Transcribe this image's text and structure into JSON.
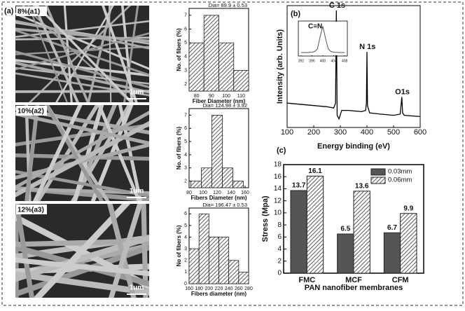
{
  "figure": {
    "panel_label": "(a)",
    "images": [
      {
        "label": "8%(a1)",
        "scale": "1um"
      },
      {
        "label": "10%(a2)",
        "scale": "1um"
      },
      {
        "label": "12%(a3)",
        "scale": "1um"
      }
    ]
  },
  "chart_data": [
    {
      "type": "histogram",
      "annotation": "Dia= 89.9 ± 0.53",
      "xlabel": "Fiber Diameter (nm)",
      "ylabel": "No. of fibers (%)",
      "bins": [
        75,
        85,
        95,
        105,
        115
      ],
      "values": [
        5,
        7,
        5,
        3
      ],
      "color": "#555555",
      "pattern": "hatch",
      "xlim": [
        75,
        115
      ],
      "xticks": [
        80,
        90,
        100,
        110
      ],
      "ylim": [
        1.5,
        7.5
      ],
      "yticks": [
        2,
        3,
        4,
        5,
        6,
        7
      ]
    },
    {
      "type": "histogram",
      "annotation": "Dia= 124.98 ± 3.92",
      "xlabel": "Fibers Diameter (nm)",
      "ylabel": "No. of fibers (%)",
      "bins": [
        82.5,
        97.5,
        112.5,
        127.5,
        142.5,
        157.5
      ],
      "values": [
        2,
        3,
        7,
        3,
        2
      ],
      "color": "#555555",
      "pattern": "hatch",
      "xlim": [
        80,
        165
      ],
      "xticks": [
        80,
        100,
        120,
        140,
        160
      ],
      "ylim": [
        1.5,
        7.5
      ],
      "yticks": [
        2,
        3,
        4,
        5,
        6,
        7
      ]
    },
    {
      "type": "histogram",
      "annotation": "Dia= 196.47 ± 0.53",
      "xlabel": "Fibers diameter (nm)",
      "ylabel": "No of fibers (%)",
      "bins": [
        160,
        180,
        200,
        220,
        240,
        260,
        280
      ],
      "values": [
        3,
        6,
        4,
        4,
        2,
        1
      ],
      "color": "#555555",
      "pattern": "hatch",
      "xlim": [
        160,
        280
      ],
      "xticks": [
        160,
        180,
        200,
        220,
        240,
        260,
        280
      ],
      "ylim": [
        0,
        6.5
      ],
      "yticks": [
        0,
        1,
        2,
        3,
        4,
        5,
        6
      ]
    },
    {
      "type": "line",
      "panel_label": "(b)",
      "xlabel": "Energy binding (eV)",
      "ylabel": "Intensity (arb. Units)",
      "annotations": [
        "C 1s",
        "N 1s",
        "O1s"
      ],
      "x": [
        100,
        150,
        200,
        250,
        275,
        282,
        285,
        288,
        295,
        305,
        330,
        380,
        395,
        398,
        400,
        402,
        410,
        450,
        500,
        525,
        531,
        534,
        540,
        600
      ],
      "values": [
        20,
        19,
        18,
        17,
        16,
        20,
        96,
        10,
        7,
        14,
        14,
        13,
        14,
        20,
        62,
        18,
        12,
        11,
        10,
        11,
        25,
        12,
        10,
        9
      ],
      "color": "#000000",
      "xlim": [
        100,
        600
      ],
      "xticks": [
        100,
        200,
        300,
        400,
        500,
        600
      ],
      "ylim": [
        0,
        100
      ]
    },
    {
      "type": "line",
      "title": "C≡N",
      "x": [
        392,
        394,
        396,
        397,
        398,
        399,
        400,
        401,
        402,
        403,
        404,
        406,
        408
      ],
      "values": [
        10,
        10,
        11,
        13,
        20,
        55,
        85,
        50,
        20,
        13,
        11,
        10,
        10
      ],
      "color": "#555555",
      "xlim": [
        391,
        409
      ],
      "xticks": [
        392,
        396,
        400,
        404,
        408
      ],
      "ylim": [
        0,
        100
      ]
    },
    {
      "type": "grouped_bar",
      "panel_label": "(c)",
      "xlabel": "PAN nanofiber membranes",
      "ylabel": "Stress (Mpa)",
      "categories": [
        "FMC",
        "MCF",
        "CFM"
      ],
      "legend": "upper right",
      "series": [
        {
          "name": "0.03mm",
          "color": "#555555",
          "pattern": "solid",
          "values": [
            13.7,
            6.5,
            6.7
          ]
        },
        {
          "name": "0.06mm",
          "color": "#555555",
          "pattern": "hatch",
          "values": [
            16.1,
            13.6,
            9.9
          ]
        }
      ],
      "ylim": [
        0,
        18
      ],
      "yticks": [
        0,
        2,
        4,
        6,
        8,
        10,
        12,
        14,
        16,
        18
      ]
    }
  ]
}
